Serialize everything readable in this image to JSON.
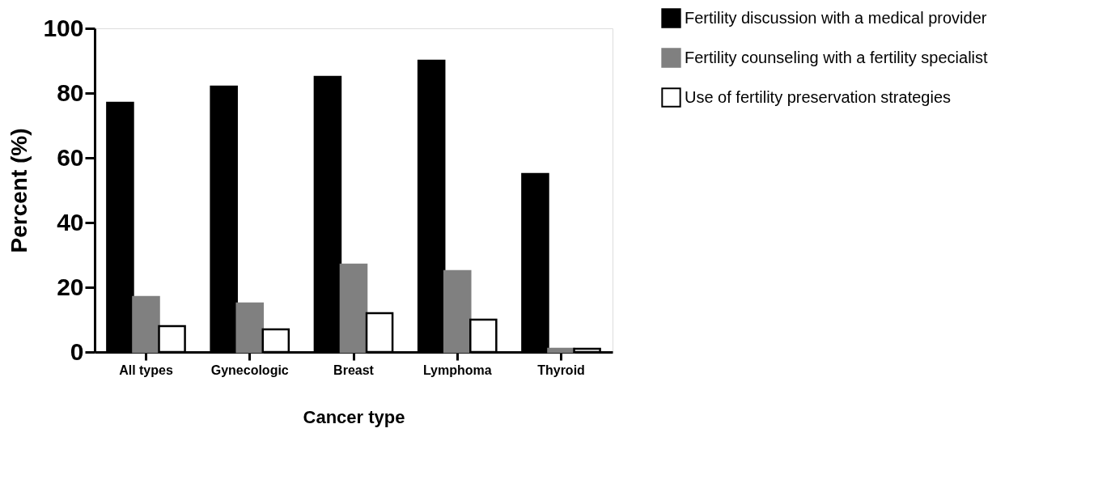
{
  "chart_data": {
    "type": "bar",
    "xlabel": "Cancer type",
    "ylabel": "Percent (%)",
    "categories": [
      "All types",
      "Gynecologic",
      "Breast",
      "Lymphoma",
      "Thyroid"
    ],
    "series": [
      {
        "name": "Fertility discussion with a medical provider",
        "color": "#000000",
        "values": [
          77,
          82,
          85,
          90,
          55
        ]
      },
      {
        "name": "Fertility counseling with a fertility specialist",
        "color": "#808080",
        "values": [
          17,
          15,
          27,
          25,
          1
        ]
      },
      {
        "name": "Use of fertility preservation strategies",
        "color": "#ffffff",
        "values": [
          8,
          7,
          12,
          10,
          1
        ]
      }
    ],
    "ylim": [
      0,
      100
    ],
    "yticks": [
      0,
      20,
      40,
      60,
      80,
      100
    ],
    "grid": false,
    "legend": "top right"
  }
}
